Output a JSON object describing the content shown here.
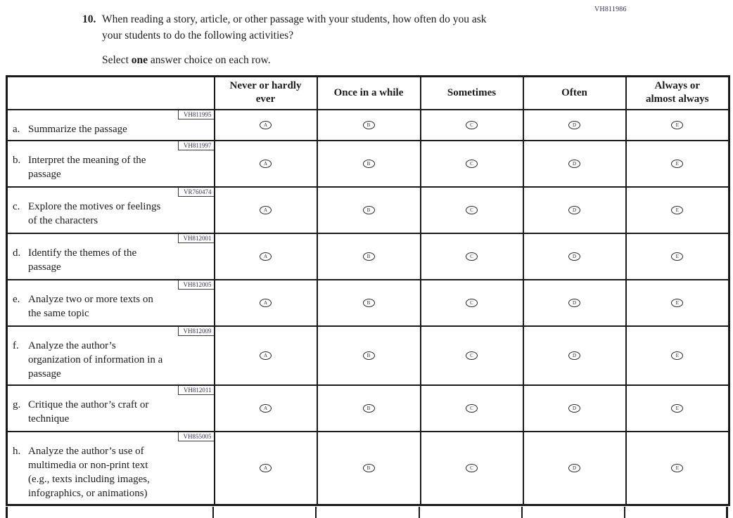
{
  "page": {
    "top_code": "VH811986"
  },
  "question": {
    "number": "10.",
    "text_lines": [
      "When reading a story, article, or other passage with your students, how often do you ask",
      "your students to do the following activities?"
    ],
    "select_prefix": "Select ",
    "select_bold": "one",
    "select_suffix": " answer choice on each row."
  },
  "table": {
    "column_headers": [
      {
        "label": "Never or hardly ever",
        "lines": [
          "Never or hardly",
          "ever"
        ]
      },
      {
        "label": "Once in a while",
        "lines": [
          "Once in a while"
        ]
      },
      {
        "label": "Sometimes",
        "lines": [
          "Sometimes"
        ]
      },
      {
        "label": "Often",
        "lines": [
          "Often"
        ]
      },
      {
        "label": "Always or almost always",
        "lines": [
          "Always or",
          "almost always"
        ]
      }
    ],
    "choice_letters": [
      "A",
      "B",
      "C",
      "D",
      "E"
    ],
    "rows": [
      {
        "code": "VH811995",
        "letter": "a.",
        "label": "Summarize the passage",
        "label_lines": [
          "Summarize the passage"
        ]
      },
      {
        "code": "VH811997",
        "letter": "b.",
        "label": "Interpret the meaning of the passage",
        "label_lines": [
          "Interpret the meaning of the",
          "passage"
        ]
      },
      {
        "code": "VR760474",
        "letter": "c.",
        "label": "Explore the motives or feelings of the characters",
        "label_lines": [
          "Explore the motives or feelings",
          "of the characters"
        ]
      },
      {
        "code": "VH812001",
        "letter": "d.",
        "label": "Identify the themes of the passage",
        "label_lines": [
          "Identify the themes of the",
          "passage"
        ]
      },
      {
        "code": "VH812005",
        "letter": "e.",
        "label": "Analyze two or more texts on the same topic",
        "label_lines": [
          "Analyze two or more texts on",
          "the same topic"
        ]
      },
      {
        "code": "VH812009",
        "letter": "f.",
        "label": "Analyze the author’s organization of information in a passage",
        "label_lines": [
          "Analyze the author’s",
          "organization of information in a",
          "passage"
        ]
      },
      {
        "code": "VH812011",
        "letter": "g.",
        "label": "Critique the author’s craft or technique",
        "label_lines": [
          "Critique the author’s craft or",
          "technique"
        ]
      },
      {
        "code": "VH855005",
        "letter": "h.",
        "label": "Analyze the author’s use of multimedia or non-print text (e.g., texts including images, infographics, or animations)",
        "label_lines": [
          "Analyze the author’s use of",
          "multimedia or non-print text",
          "(e.g., texts including images,",
          "infographics, or animations)"
        ]
      }
    ]
  },
  "colors": {
    "border": "#1a1a1a",
    "text": "#1c1c1c",
    "code_text": "#333355"
  }
}
